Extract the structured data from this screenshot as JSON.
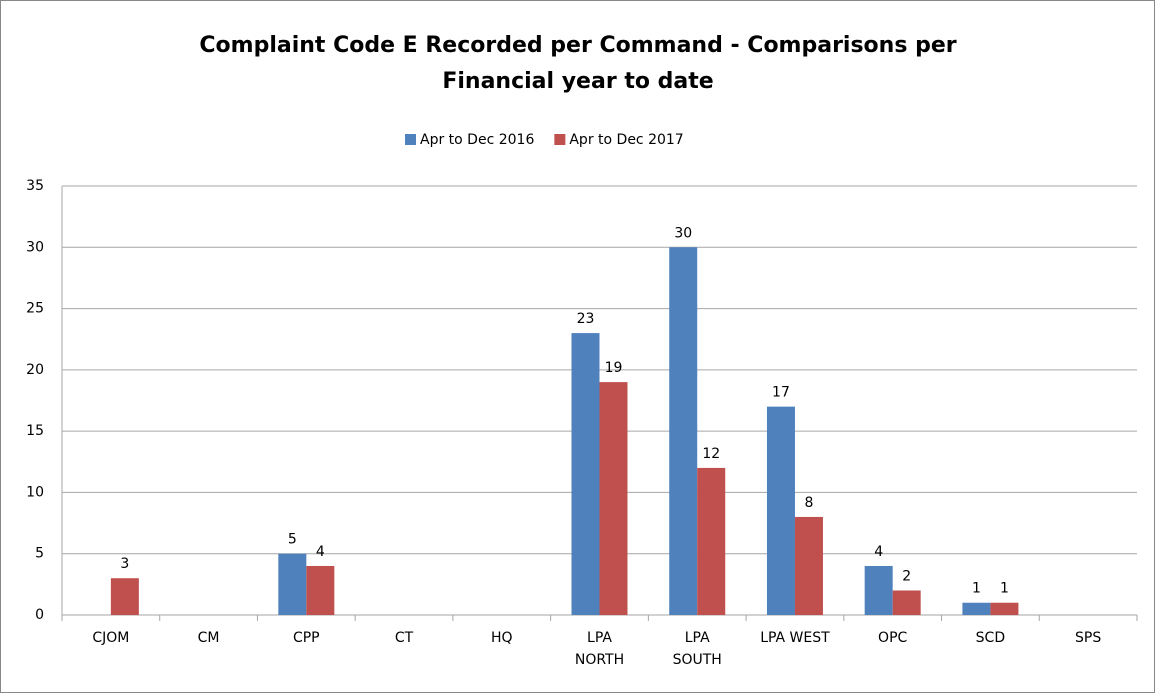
{
  "chart_data": {
    "type": "bar",
    "title": "Complaint Code E Recorded per Command - Comparisons per Financial year to date",
    "categories": [
      "CJOM",
      "CM",
      "CPP",
      "CT",
      "HQ",
      "LPA NORTH",
      "LPA SOUTH",
      "LPA WEST",
      "OPC",
      "SCD",
      "SPS"
    ],
    "series": [
      {
        "name": "Apr to Dec 2016",
        "color": "#4f81bd",
        "values": [
          null,
          null,
          5,
          null,
          null,
          23,
          30,
          17,
          4,
          1,
          null
        ]
      },
      {
        "name": "Apr to Dec 2017",
        "color": "#c0504d",
        "values": [
          3,
          null,
          4,
          null,
          null,
          19,
          12,
          8,
          2,
          1,
          null
        ]
      }
    ],
    "ylim": [
      0,
      35
    ],
    "yticks": [
      0,
      5,
      10,
      15,
      20,
      25,
      30,
      35
    ],
    "grid": true,
    "legend": "top"
  }
}
